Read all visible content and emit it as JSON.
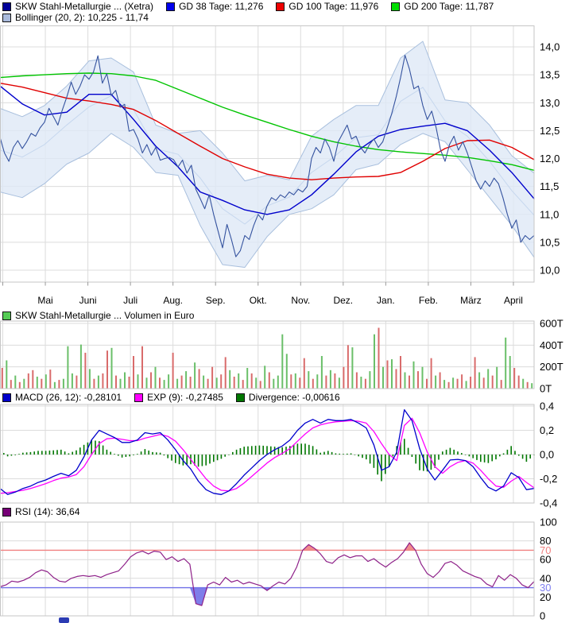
{
  "legends": {
    "price": [
      {
        "label": "SKW Stahl-Metallurgie ... (Xetra)",
        "swatch": "#000099"
      },
      {
        "label": "GD 38 Tage: 11,276",
        "swatch": "#0000ee"
      },
      {
        "label": "GD 100 Tage: 11,976",
        "swatch": "#ee0000"
      },
      {
        "label": "GD 200 Tage: 11,787",
        "swatch": "#00dd00"
      }
    ],
    "bollinger": {
      "label": "Bollinger (20, 2): 10,225 - 11,74",
      "swatch": "#aabbdd"
    },
    "volume": {
      "label": "SKW Stahl-Metallurgie ... Volumen in Euro",
      "swatch": "#55cc55"
    },
    "macd": [
      {
        "label": "MACD (26, 12): -0,28101",
        "swatch": "#0000cc"
      },
      {
        "label": "EXP (9): -0,27485",
        "swatch": "#ff00ff"
      },
      {
        "label": "Divergence: -0,00616",
        "swatch": "#007700"
      }
    ],
    "rsi": {
      "label": "RSI (14): 36,64",
      "swatch": "#770077"
    }
  },
  "chart_data": [
    {
      "id": "price",
      "type": "line",
      "title": "SKW Stahl-Metallurgie ... (Xetra)",
      "months": [
        "Mai",
        "Juni",
        "Juli",
        "Aug.",
        "Sep.",
        "Okt.",
        "Nov.",
        "Dez.",
        "Jan.",
        "Feb.",
        "März",
        "April"
      ],
      "ylim": [
        9.8,
        14.3
      ],
      "grid": true,
      "y_ticks": [
        {
          "v": 14.0,
          "label": "14,0"
        },
        {
          "v": 13.5,
          "label": "13,5"
        },
        {
          "v": 13.0,
          "label": "13,0"
        },
        {
          "v": 12.5,
          "label": "12,5"
        },
        {
          "v": 12.0,
          "label": "12,0"
        },
        {
          "v": 11.5,
          "label": "11,5"
        },
        {
          "v": 11.0,
          "label": "11,0"
        },
        {
          "v": 10.5,
          "label": "10,5"
        },
        {
          "v": 10.0,
          "label": "10,0"
        }
      ],
      "band": {
        "fill": "#dfe9f6",
        "edge": "#a8bfdd",
        "mid": "#c6d7ee"
      },
      "series": [
        {
          "name": "Kurs",
          "color": "#35539f",
          "width": 1.1,
          "values": [
            12.38,
            12.1,
            11.95,
            12.2,
            12.32,
            12.18,
            12.3,
            12.45,
            12.4,
            12.55,
            12.65,
            12.9,
            12.75,
            12.6,
            12.87,
            13.1,
            13.37,
            13.15,
            13.3,
            13.5,
            13.42,
            13.55,
            13.84,
            13.35,
            13.52,
            13.13,
            13.22,
            12.92,
            12.97,
            12.49,
            12.52,
            12.35,
            12.1,
            12.25,
            12.06,
            12.2,
            11.97,
            12.0,
            12.02,
            11.98,
            11.85,
            11.97,
            11.74,
            11.88,
            11.45,
            11.28,
            11.1,
            11.35,
            11.0,
            10.7,
            10.4,
            10.82,
            10.55,
            10.24,
            10.35,
            10.62,
            10.55,
            10.8,
            11.0,
            10.9,
            11.15,
            11.3,
            11.25,
            11.35,
            11.3,
            11.4,
            11.35,
            11.45,
            11.4,
            11.5,
            12.0,
            12.2,
            12.1,
            12.35,
            12.2,
            11.95,
            12.3,
            12.45,
            12.6,
            12.35,
            12.4,
            12.2,
            12.1,
            12.25,
            12.35,
            12.2,
            12.3,
            12.55,
            12.8,
            13.1,
            13.45,
            13.85,
            13.6,
            13.25,
            13.3,
            12.95,
            12.7,
            12.85,
            12.55,
            12.15,
            11.95,
            12.25,
            12.4,
            12.15,
            12.3,
            12.1,
            11.85,
            11.6,
            11.45,
            11.6,
            11.5,
            11.65,
            11.55,
            11.3,
            11.0,
            10.75,
            10.9,
            10.5,
            10.62,
            10.55,
            10.62
          ]
        },
        {
          "name": "GD 38 Tage",
          "last": 11.276,
          "color": "#0000cc",
          "width": 1.4,
          "values": [
            13.3,
            12.98,
            12.78,
            12.83,
            13.15,
            13.15,
            12.7,
            12.22,
            11.85,
            11.4,
            11.25,
            11.08,
            11.0,
            11.08,
            11.35,
            11.72,
            12.12,
            12.4,
            12.52,
            12.58,
            12.63,
            12.5,
            12.15,
            11.75,
            11.28
          ]
        },
        {
          "name": "GD 100 Tage",
          "last": 11.976,
          "color": "#e00000",
          "width": 1.4,
          "values": [
            13.35,
            13.28,
            13.18,
            13.08,
            13.03,
            12.97,
            12.88,
            12.68,
            12.45,
            12.22,
            12.0,
            11.85,
            11.72,
            11.65,
            11.62,
            11.65,
            11.67,
            11.68,
            11.75,
            11.95,
            12.18,
            12.32,
            12.33,
            12.2,
            11.98
          ]
        },
        {
          "name": "GD 200 Tage",
          "last": 11.787,
          "color": "#00c400",
          "width": 1.4,
          "values": [
            13.45,
            13.48,
            13.5,
            13.52,
            13.53,
            13.52,
            13.48,
            13.4,
            13.24,
            13.08,
            12.92,
            12.78,
            12.65,
            12.52,
            12.4,
            12.3,
            12.22,
            12.16,
            12.12,
            12.09,
            12.06,
            12.02,
            11.96,
            11.89,
            11.79
          ]
        },
        {
          "name": "Bollinger oben",
          "last": 11.74,
          "color": "#a8bfdd",
          "width": 1,
          "values": [
            12.9,
            12.75,
            12.95,
            13.3,
            13.75,
            13.8,
            13.55,
            12.6,
            12.45,
            12.5,
            12.1,
            11.6,
            11.7,
            11.62,
            12.4,
            12.7,
            12.95,
            12.95,
            13.8,
            14.1,
            13.05,
            13.0,
            12.6,
            12.05,
            11.74
          ]
        },
        {
          "name": "Bollinger unten",
          "last": 10.225,
          "color": "#a8bfdd",
          "width": 1,
          "values": [
            11.4,
            11.3,
            11.55,
            11.9,
            12.1,
            12.45,
            12.2,
            11.75,
            11.7,
            10.8,
            10.1,
            10.05,
            10.6,
            11.0,
            11.1,
            11.35,
            11.8,
            11.9,
            12.25,
            12.45,
            12.3,
            11.8,
            11.3,
            10.8,
            10.23
          ]
        }
      ]
    },
    {
      "id": "volume",
      "type": "bar",
      "title": "SKW Stahl-Metallurgie ... Volumen in Euro",
      "unit": "T",
      "ylim": [
        0,
        600
      ],
      "y_ticks": [
        {
          "v": 600,
          "label": "600T"
        },
        {
          "v": 400,
          "label": "400T"
        },
        {
          "v": 200,
          "label": "200T"
        },
        {
          "v": 0,
          "label": "0T"
        }
      ],
      "colors": {
        "up": "#6abf69",
        "down": "#d96b6b"
      },
      "values": [
        -190,
        260,
        -80,
        120,
        -60,
        90,
        -140,
        -170,
        110,
        -90,
        130,
        -175,
        60,
        -80,
        90,
        390,
        140,
        -120,
        405,
        -330,
        180,
        -90,
        120,
        -140,
        -350,
        375,
        -120,
        90,
        150,
        -110,
        -300,
        130,
        -390,
        100,
        -150,
        200,
        -100,
        80,
        130,
        -330,
        90,
        -120,
        160,
        -110,
        240,
        -180,
        120,
        -90,
        -200,
        100,
        -130,
        -290,
        170,
        -110,
        140,
        -80,
        190,
        -140,
        100,
        -70,
        210,
        -150,
        90,
        120,
        500,
        320,
        -130,
        140,
        -100,
        -280,
        160,
        -90,
        130,
        300,
        -120,
        170,
        -140,
        100,
        -200,
        -400,
        380,
        -150,
        110,
        -90,
        160,
        500,
        -560,
        200,
        -260,
        270,
        -180,
        -300,
        150,
        -120,
        250,
        -160,
        200,
        -90,
        -280,
        120,
        -150,
        80,
        -60,
        100,
        -90,
        -130,
        70,
        -110,
        -290,
        150,
        -100,
        180,
        -120,
        200,
        -80,
        470,
        300,
        -190,
        -120,
        90,
        -60,
        50
      ]
    },
    {
      "id": "macd",
      "type": "line",
      "ylim": [
        -0.45,
        0.45
      ],
      "y_ticks": [
        {
          "v": 0.4,
          "label": "0,4"
        },
        {
          "v": 0.2,
          "label": "0,2"
        },
        {
          "v": 0.0,
          "label": "0,0"
        },
        {
          "v": -0.2,
          "label": "-0,2"
        },
        {
          "v": -0.4,
          "label": "-0,4"
        }
      ],
      "series": [
        {
          "name": "MACD (26, 12)",
          "last": -0.28101,
          "color": "#0000cc",
          "width": 1.3,
          "values": [
            -0.28,
            -0.33,
            -0.31,
            -0.28,
            -0.26,
            -0.23,
            -0.21,
            -0.18,
            -0.155,
            -0.175,
            -0.13,
            -0.02,
            0.12,
            0.2,
            0.17,
            0.14,
            0.1,
            0.1,
            0.12,
            0.18,
            0.17,
            0.18,
            0.12,
            0.04,
            -0.05,
            -0.12,
            -0.22,
            -0.29,
            -0.32,
            -0.33,
            -0.3,
            -0.24,
            -0.17,
            -0.11,
            -0.05,
            0.0,
            0.04,
            0.07,
            0.12,
            0.2,
            0.26,
            0.29,
            0.26,
            0.29,
            0.28,
            0.28,
            0.29,
            0.26,
            0.22,
            0.08,
            -0.13,
            -0.1,
            0.02,
            0.37,
            0.28,
            0.05,
            -0.12,
            -0.21,
            -0.13,
            -0.045,
            -0.04,
            -0.05,
            -0.1,
            -0.19,
            -0.27,
            -0.3,
            -0.26,
            -0.15,
            -0.19,
            -0.29,
            -0.28
          ]
        },
        {
          "name": "EXP (9)",
          "last": -0.27485,
          "color": "#ff00ff",
          "width": 1.3,
          "values": [
            -0.32,
            -0.315,
            -0.305,
            -0.295,
            -0.28,
            -0.26,
            -0.24,
            -0.215,
            -0.195,
            -0.185,
            -0.165,
            -0.1,
            0.0,
            0.09,
            0.13,
            0.135,
            0.125,
            0.115,
            0.115,
            0.135,
            0.15,
            0.165,
            0.15,
            0.11,
            0.04,
            -0.04,
            -0.12,
            -0.2,
            -0.26,
            -0.295,
            -0.3,
            -0.28,
            -0.235,
            -0.18,
            -0.125,
            -0.07,
            -0.025,
            0.01,
            0.05,
            0.11,
            0.17,
            0.22,
            0.245,
            0.26,
            0.27,
            0.275,
            0.28,
            0.275,
            0.26,
            0.19,
            0.09,
            0.0,
            -0.05,
            0.24,
            0.3,
            0.18,
            0.02,
            -0.1,
            -0.155,
            -0.1,
            -0.065,
            -0.05,
            -0.07,
            -0.13,
            -0.2,
            -0.26,
            -0.27,
            -0.22,
            -0.18,
            -0.23,
            -0.275
          ]
        },
        {
          "name": "Divergence",
          "last": -0.00616,
          "color": "#007700",
          "derived": "macd-minus-exp"
        }
      ]
    },
    {
      "id": "rsi",
      "type": "line",
      "ylim": [
        0,
        100
      ],
      "overbought": 70,
      "oversold": 30,
      "ob_color": "#f08080",
      "os_color": "#7070e8",
      "y_ticks": [
        {
          "v": 100,
          "label": "100"
        },
        {
          "v": 80,
          "label": "80"
        },
        {
          "v": 70,
          "label": "70",
          "color": "#f08080"
        },
        {
          "v": 60,
          "label": "60"
        },
        {
          "v": 40,
          "label": "40"
        },
        {
          "v": 30,
          "label": "30",
          "color": "#8080f0"
        },
        {
          "v": 20,
          "label": "20"
        },
        {
          "v": 0,
          "label": "0"
        }
      ],
      "series": [
        {
          "name": "RSI (14)",
          "last": 36.64,
          "color": "#8e2189",
          "width": 1.2,
          "values": [
            31,
            33,
            37,
            36,
            38,
            41,
            46,
            49,
            47,
            41,
            37,
            36,
            40,
            42,
            43,
            42,
            43,
            41,
            44,
            46,
            48,
            55,
            63,
            67,
            69,
            66,
            69,
            68,
            60,
            63,
            58,
            61,
            55,
            13,
            11,
            33,
            36,
            33,
            41,
            36,
            38,
            34,
            36,
            34,
            32,
            27,
            32,
            36,
            34,
            40,
            52,
            70,
            76,
            72,
            66,
            58,
            56,
            62,
            65,
            62,
            64,
            64,
            58,
            61,
            56,
            52,
            57,
            61,
            68,
            78,
            70,
            55,
            45,
            41,
            47,
            56,
            58,
            54,
            48,
            45,
            42,
            40,
            34,
            31,
            43,
            38,
            44,
            40,
            33,
            30,
            36.6
          ]
        }
      ]
    }
  ]
}
